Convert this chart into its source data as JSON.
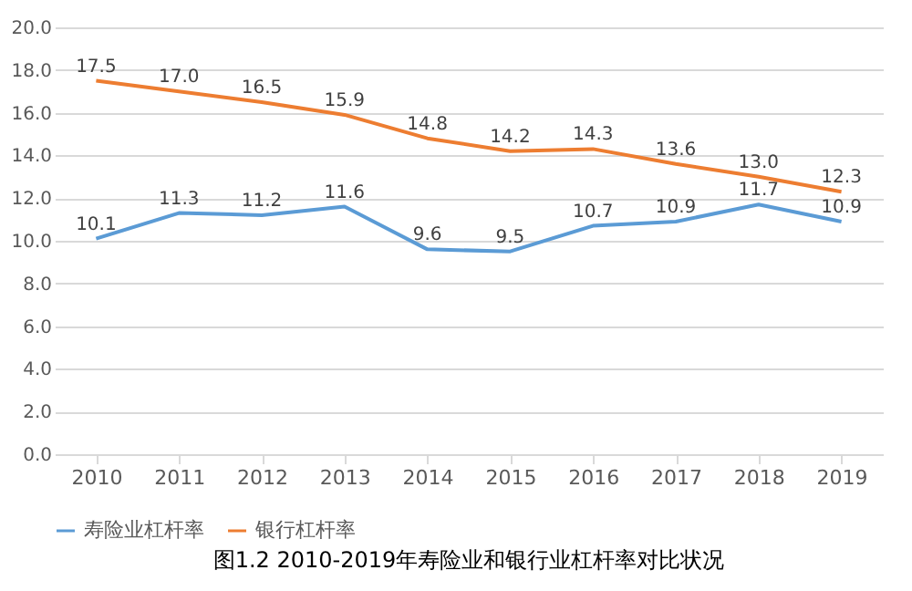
{
  "chart_data": {
    "type": "line",
    "title": "图1.2  2010-2019年寿险业和银行业杠杆率对比状况",
    "categories": [
      "2010",
      "2011",
      "2012",
      "2013",
      "2014",
      "2015",
      "2016",
      "2017",
      "2018",
      "2019"
    ],
    "series": [
      {
        "name": "寿险业杠杆率",
        "color": "#5b9bd5",
        "values": [
          10.1,
          11.3,
          11.2,
          11.6,
          9.6,
          9.5,
          10.7,
          10.9,
          11.7,
          10.9
        ],
        "value_labels": [
          "10.1",
          "11.3",
          "11.2",
          "11.6",
          "9.6",
          "9.5",
          "10.7",
          "10.9",
          "11.7",
          "10.9"
        ]
      },
      {
        "name": "银行杠杆率",
        "color": "#ed7d31",
        "values": [
          17.5,
          17.0,
          16.5,
          15.9,
          14.8,
          14.2,
          14.3,
          13.6,
          13.0,
          12.3
        ],
        "value_labels": [
          "17.5",
          "17.0",
          "16.5",
          "15.9",
          "14.8",
          "14.2",
          "14.3",
          "13.6",
          "13.0",
          "12.3"
        ]
      }
    ],
    "ylim": [
      0,
      20
    ],
    "yticks": [
      {
        "value": 0,
        "label": "0.0"
      },
      {
        "value": 2,
        "label": "2.0"
      },
      {
        "value": 4,
        "label": "4.0"
      },
      {
        "value": 6,
        "label": "6.0"
      },
      {
        "value": 8,
        "label": "8.0"
      },
      {
        "value": 10,
        "label": "10.0"
      },
      {
        "value": 12,
        "label": "12.0"
      },
      {
        "value": 14,
        "label": "14.0"
      },
      {
        "value": 16,
        "label": "16.0"
      },
      {
        "value": 18,
        "label": "18.0"
      },
      {
        "value": 20,
        "label": "20.0"
      }
    ],
    "grid": "y",
    "legend": "bottom",
    "marker": "none",
    "line_style": "solid"
  }
}
